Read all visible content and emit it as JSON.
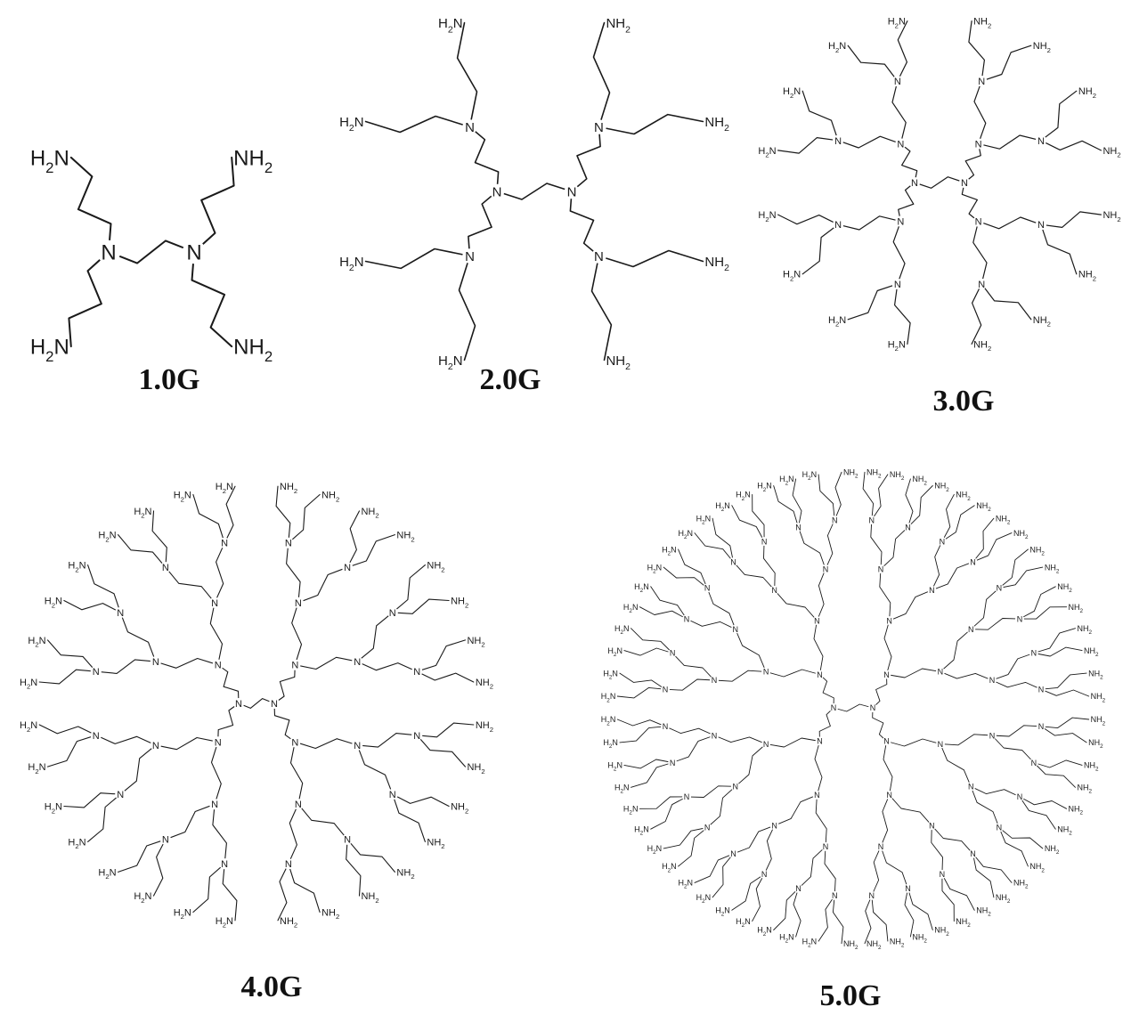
{
  "figure": {
    "panels": [
      {
        "id": "g1",
        "caption": "1.0G",
        "generation": 1
      },
      {
        "id": "g2",
        "caption": "2.0G",
        "generation": 2
      },
      {
        "id": "g3",
        "caption": "3.0G",
        "generation": 3
      },
      {
        "id": "g4",
        "caption": "4.0G",
        "generation": 4
      },
      {
        "id": "g5",
        "caption": "5.0G",
        "generation": 5
      }
    ],
    "atom_labels": {
      "amine_nitrogen": "N",
      "terminal_amine": "NH2",
      "terminal_amine_reversed": "H2N"
    },
    "colors": {
      "line": "#1a1a1a",
      "text": "#111111",
      "background": "#ffffff"
    }
  }
}
